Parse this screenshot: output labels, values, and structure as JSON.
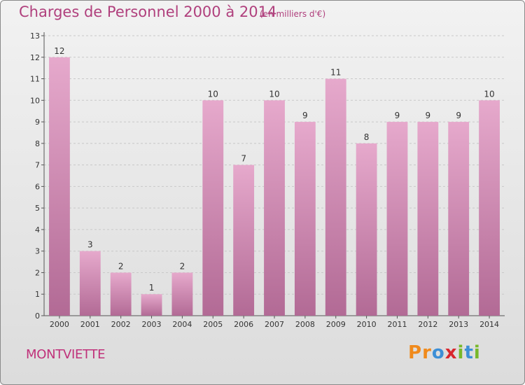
{
  "header": {
    "title": "Charges de Personnel 2000 à 2014",
    "subtitle": "(en milliers d'€)"
  },
  "footer": {
    "commune": "MONTVIETTE",
    "logo_text": "Proxiti",
    "logo_letters": [
      {
        "ch": "P",
        "color": "#f08a1c"
      },
      {
        "ch": "r",
        "color": "#f08a1c"
      },
      {
        "ch": "o",
        "color": "#3d8fd6"
      },
      {
        "ch": "x",
        "color": "#d8272e"
      },
      {
        "ch": "i",
        "color": "#78b82a"
      },
      {
        "ch": "t",
        "color": "#3d8fd6"
      },
      {
        "ch": "i",
        "color": "#78b82a"
      }
    ]
  },
  "colors": {
    "bar_top": "#e6a9cc",
    "bar_bottom": "#b26a95",
    "axis": "#555555",
    "grid": "#c8c8c8",
    "title": "#b0407d"
  },
  "chart_data": {
    "type": "bar",
    "title": "Charges de Personnel 2000 à 2014",
    "subtitle": "(en milliers d'€)",
    "categories": [
      "2000",
      "2001",
      "2002",
      "2003",
      "2004",
      "2005",
      "2006",
      "2007",
      "2008",
      "2009",
      "2010",
      "2011",
      "2012",
      "2013",
      "2014"
    ],
    "values": [
      12,
      3,
      2,
      1,
      2,
      10,
      7,
      10,
      9,
      11,
      8,
      9,
      9,
      9,
      10
    ],
    "ylim": [
      0,
      13
    ],
    "yticks": [
      0,
      1,
      2,
      3,
      4,
      5,
      6,
      7,
      8,
      9,
      10,
      11,
      12,
      13
    ],
    "grid": true,
    "data_labels": true,
    "legend": "none"
  }
}
